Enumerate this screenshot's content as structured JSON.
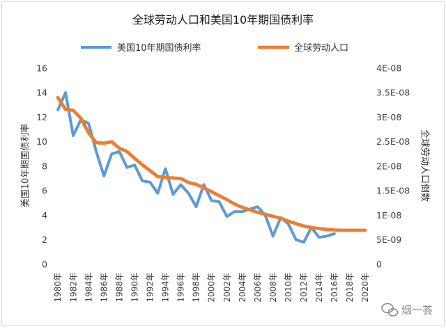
{
  "chart_data": {
    "type": "line",
    "title": "全球劳动人口和美国10年期国债利率",
    "legend": "top",
    "grid": false,
    "x": [
      1980,
      2020
    ],
    "x_ticks": [
      1980,
      1982,
      1984,
      1986,
      1988,
      1990,
      1992,
      1994,
      1996,
      1998,
      2000,
      2002,
      2004,
      2006,
      2008,
      2010,
      2012,
      2014,
      2016,
      2018,
      2020
    ],
    "x_tick_labels": [
      "1980年",
      "1982年",
      "1984年",
      "1986年",
      "1988年",
      "1990年",
      "1992年",
      "1994年",
      "1996年",
      "1998年",
      "2000年",
      "2002年",
      "2004年",
      "2006年",
      "2008年",
      "2010年",
      "2012年",
      "2014年",
      "2016年",
      "2018年",
      "2020年"
    ],
    "left_axis": {
      "label": "美国10年期国债利率",
      "ylim": [
        0,
        16
      ],
      "ticks": [
        0,
        2,
        4,
        6,
        8,
        10,
        12,
        14,
        16
      ]
    },
    "right_axis": {
      "label": "全球劳动人口倒数",
      "ylim": [
        0,
        4e-08
      ],
      "ticks": [
        0,
        5e-09,
        1e-08,
        1.5e-08,
        2e-08,
        2.5e-08,
        3e-08,
        3.5e-08,
        4e-08
      ],
      "tick_labels": [
        "0",
        "5E-09",
        "1E-08",
        "1.5E-08",
        "2E-08",
        "2.5E-08",
        "3E-08",
        "3.5E-08",
        "4E-08"
      ]
    },
    "series": [
      {
        "name": "美国10年期国债利率",
        "axis": "left",
        "color": "#5B9BD5",
        "x": [
          1980,
          1981,
          1982,
          1983,
          1984,
          1985,
          1986,
          1987,
          1988,
          1989,
          1990,
          1991,
          1992,
          1993,
          1994,
          1995,
          1996,
          1997,
          1998,
          1999,
          2000,
          2001,
          2002,
          2003,
          2004,
          2005,
          2006,
          2007,
          2008,
          2009,
          2010,
          2011,
          2012,
          2013,
          2014,
          2015,
          2016
        ],
        "values": [
          12.6,
          14.0,
          10.5,
          11.8,
          11.5,
          9.2,
          7.2,
          9.0,
          9.2,
          7.9,
          8.1,
          6.8,
          6.7,
          5.8,
          7.8,
          5.7,
          6.5,
          5.8,
          4.7,
          6.5,
          5.2,
          5.1,
          3.9,
          4.3,
          4.3,
          4.5,
          4.7,
          4.0,
          2.3,
          3.8,
          3.3,
          2.0,
          1.8,
          3.0,
          2.2,
          2.3,
          2.5
        ]
      },
      {
        "name": "全球劳动人口",
        "axis": "right",
        "color": "#ED7D31",
        "x": [
          1980,
          1981,
          1982,
          1983,
          1984,
          1985,
          1986,
          1987,
          1988,
          1989,
          1990,
          1991,
          1992,
          1993,
          1994,
          1995,
          1996,
          1997,
          1998,
          1999,
          2000,
          2001,
          2002,
          2003,
          2004,
          2005,
          2006,
          2007,
          2008,
          2009,
          2010,
          2011,
          2012,
          2013,
          2014,
          2015,
          2016,
          2017,
          2018,
          2019,
          2020
        ],
        "values": [
          3.4e-08,
          3.16e-08,
          3.14e-08,
          2.98e-08,
          2.68e-08,
          2.48e-08,
          2.47e-08,
          2.5e-08,
          2.37e-08,
          2.3e-08,
          2.16e-08,
          2.03e-08,
          1.91e-08,
          1.79e-08,
          1.77e-08,
          1.76e-08,
          1.75e-08,
          1.67e-08,
          1.63e-08,
          1.56e-08,
          1.48e-08,
          1.4e-08,
          1.32e-08,
          1.23e-08,
          1.16e-08,
          1.11e-08,
          1.06e-08,
          1.02e-08,
          9.8e-09,
          9.4e-09,
          8.8e-09,
          8.3e-09,
          7.8e-09,
          7.5e-09,
          7.3e-09,
          7.1e-09,
          7e-09,
          6.95e-09,
          6.95e-09,
          6.95e-09,
          6.95e-09
        ]
      }
    ]
  },
  "watermark": {
    "text": "烟一荟",
    "color": "#8c8c8c"
  }
}
